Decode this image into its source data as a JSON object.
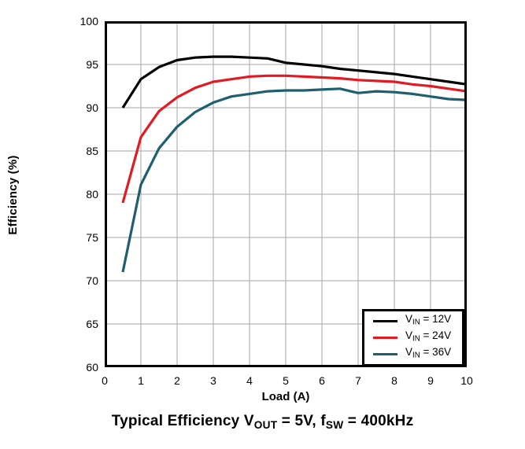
{
  "chart_data": {
    "type": "line",
    "title": "Typical Efficiency VOUT = 5V, fSW = 400kHz",
    "xlabel": "Load (A)",
    "ylabel": "Efficiency (%)",
    "xlim": [
      0,
      10
    ],
    "ylim": [
      60,
      100
    ],
    "xticks": [
      0,
      1,
      2,
      3,
      4,
      5,
      6,
      7,
      8,
      9,
      10
    ],
    "yticks": [
      60,
      65,
      70,
      75,
      80,
      85,
      90,
      95,
      100
    ],
    "grid": true,
    "gridline_color": "#a6a6a6",
    "axis_color": "#000000",
    "legend_position": "bottom-right",
    "x": [
      0.5,
      1,
      1.5,
      2,
      2.5,
      3,
      3.5,
      4,
      4.5,
      5,
      5.5,
      6,
      6.5,
      7,
      7.5,
      8,
      8.5,
      9,
      9.5,
      10
    ],
    "series": [
      {
        "name": "VIN = 12V",
        "color": "#000000",
        "values": [
          90,
          93.3,
          94.7,
          95.5,
          95.8,
          95.9,
          95.9,
          95.8,
          95.7,
          95.2,
          95.0,
          94.8,
          94.5,
          94.3,
          94.1,
          93.9,
          93.6,
          93.3,
          93.0,
          92.7
        ]
      },
      {
        "name": "VIN = 24V",
        "color": "#e21b23",
        "values": [
          79,
          86.6,
          89.6,
          91.2,
          92.3,
          93.0,
          93.3,
          93.6,
          93.7,
          93.7,
          93.6,
          93.5,
          93.4,
          93.2,
          93.1,
          93.0,
          92.7,
          92.5,
          92.2,
          91.9
        ]
      },
      {
        "name": "VIN = 36V",
        "color": "#1f5e6f",
        "values": [
          71,
          81.1,
          85.3,
          87.8,
          89.5,
          90.6,
          91.3,
          91.6,
          91.9,
          92.0,
          92.0,
          92.1,
          92.2,
          91.7,
          91.9,
          91.8,
          91.6,
          91.3,
          91.0,
          90.9
        ]
      }
    ]
  },
  "title": {
    "parts": [
      {
        "t": "Typical Efficiency V"
      },
      {
        "t": "OUT",
        "sub": true
      },
      {
        "t": " = 5V, f"
      },
      {
        "t": "SW",
        "sub": true
      },
      {
        "t": " = 400kHz"
      }
    ]
  },
  "axes": {
    "x_label": "Load (A)",
    "y_label": "Efficiency (%)"
  },
  "legend": {
    "items": [
      {
        "v": "V",
        "sub": "IN",
        "rest": " = 12V",
        "color": "#000000"
      },
      {
        "v": "V",
        "sub": "IN",
        "rest": " = 24V",
        "color": "#e21b23"
      },
      {
        "v": "V",
        "sub": "IN",
        "rest": " = 36V",
        "color": "#1f5e6f"
      }
    ]
  }
}
